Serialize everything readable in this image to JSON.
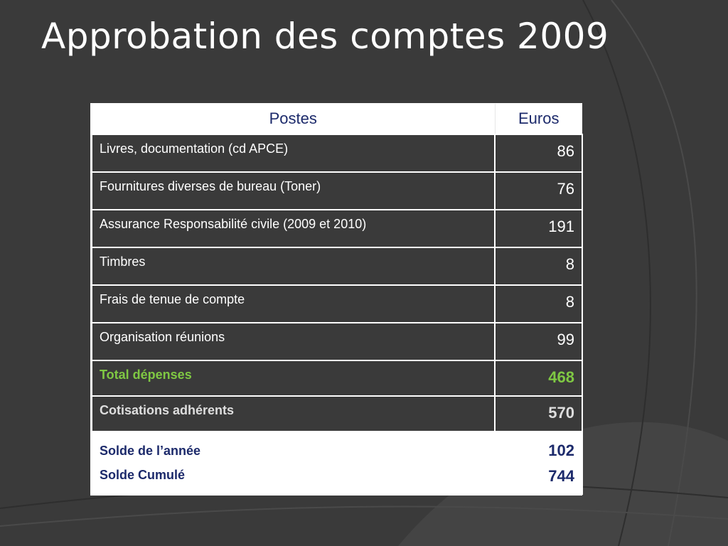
{
  "slide": {
    "title": "Approbation des comptes 2009"
  },
  "table": {
    "headers": {
      "postes": "Postes",
      "euros": "Euros"
    },
    "rows": [
      {
        "label": "Livres, documentation (cd APCE)",
        "value": "86"
      },
      {
        "label": "Fournitures diverses de bureau (Toner)",
        "value": "76"
      },
      {
        "label": "Assurance Responsabilité civile (2009 et 2010)",
        "value": "191"
      },
      {
        "label": "Timbres",
        "value": "8"
      },
      {
        "label": "Frais de tenue de compte",
        "value": "8"
      },
      {
        "label": "Organisation réunions",
        "value": "99"
      }
    ],
    "total": {
      "label": "Total dépenses",
      "value": "468"
    },
    "income": {
      "label": "Cotisations adhérents",
      "value": "570"
    },
    "balance": {
      "year_label": "Solde de l’année",
      "year_value": "102",
      "cumul_label": "Solde Cumulé",
      "cumul_value": "744"
    }
  },
  "colors": {
    "background": "#3a3a3a",
    "header_text": "#1c2a6b",
    "total_text": "#7fc843",
    "income_text": "#dedede"
  }
}
